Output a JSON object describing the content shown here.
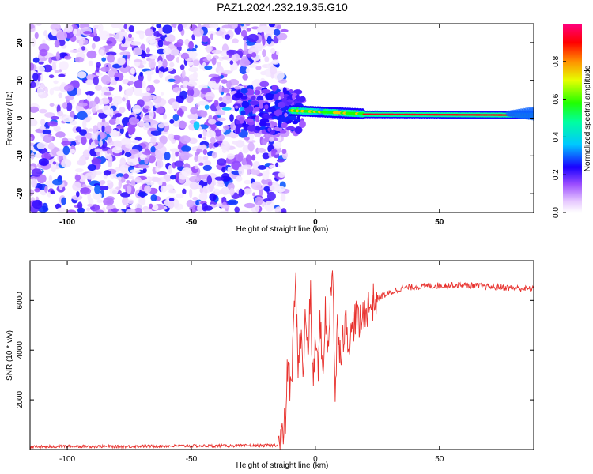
{
  "title": "PAZ1.2024.232.19.35.G10",
  "colors": {
    "snr_line": "#e8322e",
    "axis": "#000000",
    "background": "#ffffff"
  },
  "chart_data": [
    {
      "type": "heatmap",
      "xlabel": "Height of straight line (km)",
      "ylabel": "Frequency (Hz)",
      "xlim": [
        -115,
        88
      ],
      "ylim": [
        -25,
        25
      ],
      "x_ticks": [
        -100,
        -50,
        0,
        50
      ],
      "y_ticks": [
        -20,
        -10,
        0,
        10,
        20
      ],
      "colorbar": {
        "label": "Normalized spectral amplitude",
        "range": [
          0,
          1
        ],
        "ticks": [
          "0.0",
          "0.2",
          "0.4",
          "0.6",
          "0.8"
        ],
        "colormap": "rainbow (white-violet-blue-cyan-green-yellow-red-magenta)"
      },
      "features": {
        "noise_region_x": [
          -115,
          -15
        ],
        "noise_amplitude": [
          0.05,
          0.3
        ],
        "transition_region_x": [
          -30,
          20
        ],
        "signal_line_x": [
          -10,
          88
        ],
        "signal_line_frequency": [
          2,
          1,
          0.8
        ],
        "signal_line_amplitude": 0.9
      }
    },
    {
      "type": "line",
      "xlabel": "Height of straight line (km)",
      "ylabel": "SNR (10 * v/v)",
      "xlim": [
        -115,
        88
      ],
      "ylim": [
        0,
        7600
      ],
      "x_ticks": [
        -100,
        -50,
        0,
        50
      ],
      "y_ticks": [
        2000,
        4000,
        6000
      ],
      "series": [
        {
          "x": [
            -115,
            -100,
            -80,
            -60,
            -40,
            -20,
            -15,
            -13,
            -12,
            -11,
            -10,
            -9,
            -8,
            -7,
            -6,
            -5,
            -4,
            -3,
            -2,
            -1,
            0,
            1,
            2,
            3,
            4,
            5,
            6,
            7,
            8,
            9,
            10,
            12,
            14,
            16,
            18,
            20,
            25,
            30,
            35,
            40,
            50,
            60,
            70,
            80,
            88
          ],
          "values": [
            100,
            130,
            120,
            140,
            150,
            160,
            180,
            500,
            1300,
            3800,
            2100,
            4200,
            6900,
            3500,
            4700,
            3200,
            5300,
            3900,
            6300,
            2600,
            4400,
            3200,
            5200,
            2900,
            5800,
            3600,
            6200,
            7600,
            1800,
            5400,
            3900,
            5100,
            4300,
            5400,
            5000,
            5600,
            6100,
            6300,
            6500,
            6550,
            6600,
            6620,
            6550,
            6500,
            6450
          ]
        }
      ]
    }
  ]
}
